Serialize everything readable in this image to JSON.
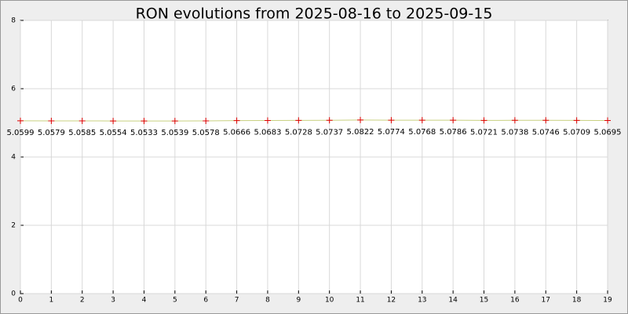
{
  "chart_data": {
    "type": "line",
    "title": "RON evolutions from 2025-08-16 to 2025-09-15",
    "x": [
      0,
      1,
      2,
      3,
      4,
      5,
      6,
      7,
      8,
      9,
      10,
      11,
      12,
      13,
      14,
      15,
      16,
      17,
      18,
      19
    ],
    "series": [
      {
        "values": [
          5.0599,
          5.0579,
          5.0585,
          5.0554,
          5.0533,
          5.0539,
          5.0578,
          5.0666,
          5.0683,
          5.0728,
          5.0737,
          5.0822,
          5.0774,
          5.0768,
          5.0786,
          5.0721,
          5.0738,
          5.0746,
          5.0709,
          5.0695
        ],
        "color": "#c8d080",
        "marker_color": "#dd0000"
      }
    ],
    "xlim": [
      0,
      19
    ],
    "xticks": [
      0,
      1,
      2,
      3,
      4,
      5,
      6,
      7,
      8,
      9,
      10,
      11,
      12,
      13,
      14,
      15,
      16,
      17,
      18,
      19
    ],
    "ylim": [
      0,
      8
    ],
    "yticks": [
      0,
      2,
      4,
      6,
      8
    ],
    "grid": true
  }
}
